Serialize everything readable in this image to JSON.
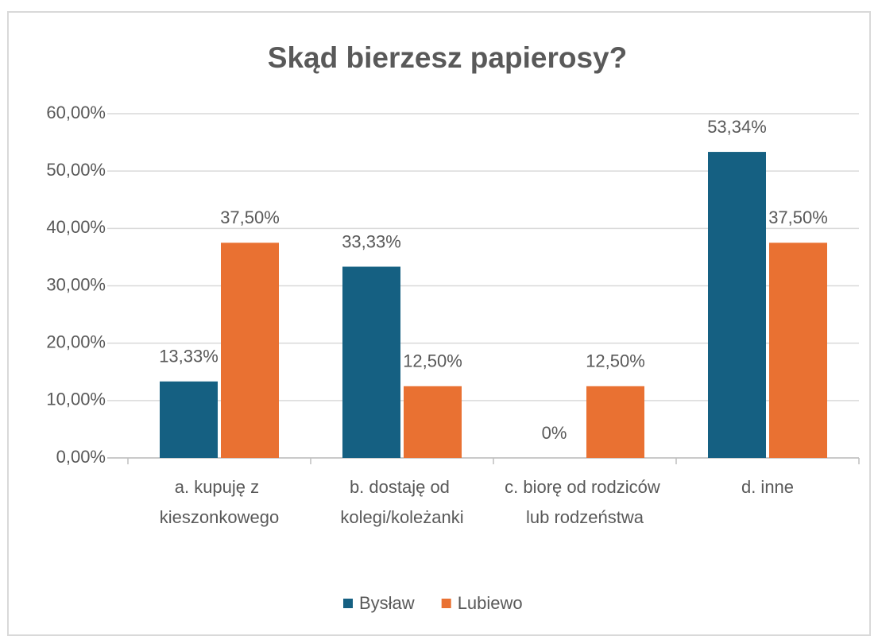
{
  "chart_data": {
    "type": "bar",
    "title": "Skąd bierzesz papierosy?",
    "categories": [
      "a. kupuję z kieszonkowego",
      "b. dostaję od kolegi/koleżanki",
      "c. biorę od rodziców lub rodzeństwa",
      "d.  inne"
    ],
    "series": [
      {
        "name": "Bysław",
        "color": "#156082",
        "values": [
          13.33,
          33.33,
          0,
          53.34
        ],
        "value_labels": [
          "13,33%",
          "33,33%",
          "0%",
          "53,34%"
        ]
      },
      {
        "name": "Lubiewo",
        "color": "#e97132",
        "values": [
          37.5,
          12.5,
          12.5,
          37.5
        ],
        "value_labels": [
          "37,50%",
          "12,50%",
          "12,50%",
          "37,50%"
        ]
      }
    ],
    "ylim": [
      0,
      60
    ],
    "yticks": [
      {
        "value": 0,
        "label": "0,00%"
      },
      {
        "value": 10,
        "label": "10,00%"
      },
      {
        "value": 20,
        "label": "20,00%"
      },
      {
        "value": 30,
        "label": "30,00%"
      },
      {
        "value": 40,
        "label": "40,00%"
      },
      {
        "value": 50,
        "label": "50,00%"
      },
      {
        "value": 60,
        "label": "60,00%"
      }
    ],
    "grid": true,
    "legend": "bottom"
  }
}
